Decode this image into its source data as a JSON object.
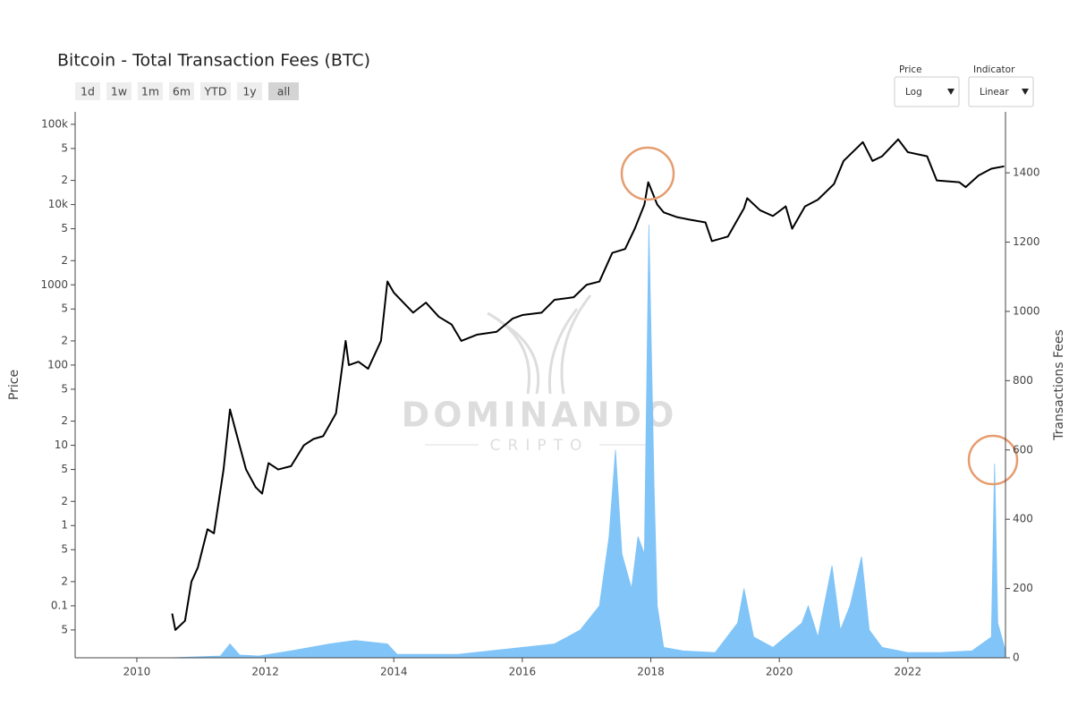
{
  "chart_data": {
    "type": "price-fees",
    "title": "Bitcoin - Total Transaction Fees (BTC)",
    "y_label": "Price",
    "y2_label": "Transactions Fees",
    "xlim": [
      2009.04,
      2023.52
    ],
    "xticks": [
      2010,
      2012,
      2014,
      2016,
      2018,
      2020,
      2022
    ],
    "ylim": [
      0.0225,
      143000
    ],
    "ylog": true,
    "yticks": [
      {
        "value": 100000,
        "label": "100k"
      },
      {
        "value": 50000,
        "label": "5"
      },
      {
        "value": 20000,
        "label": "2"
      },
      {
        "value": 10000,
        "label": "10k"
      },
      {
        "value": 5000,
        "label": "5"
      },
      {
        "value": 2000,
        "label": "2"
      },
      1000,
      {
        "value": 500,
        "label": "5"
      },
      {
        "value": 200,
        "label": "2"
      },
      100,
      {
        "value": 50,
        "label": "5"
      },
      {
        "value": 20,
        "label": "2"
      },
      10,
      {
        "value": 5,
        "label": "5"
      },
      {
        "value": 2,
        "label": "2"
      },
      1,
      {
        "value": 0.5,
        "label": "5"
      },
      {
        "value": 0.2,
        "label": "2"
      },
      0.1,
      {
        "value": 0.05,
        "label": "5"
      }
    ],
    "y2lim": [
      0,
      1576
    ],
    "y2ticks": [
      0,
      200,
      400,
      600,
      800,
      1000,
      1200,
      1400
    ],
    "series": [
      {
        "name": "Transactions Fees",
        "kind": "area",
        "axis": "y2",
        "color": "#80c4f8",
        "x": [
          2009.04,
          2010.5,
          2011.3,
          2011.45,
          2011.6,
          2011.9,
          2012.4,
          2013.0,
          2013.4,
          2013.9,
          2014.05,
          2014.5,
          2015.0,
          2015.5,
          2016.0,
          2016.5,
          2016.9,
          2017.2,
          2017.35,
          2017.45,
          2017.55,
          2017.7,
          2017.8,
          2017.9,
          2017.97,
          2018.05,
          2018.1,
          2018.2,
          2018.5,
          2019.0,
          2019.35,
          2019.45,
          2019.6,
          2019.9,
          2020.35,
          2020.45,
          2020.6,
          2020.82,
          2020.95,
          2021.1,
          2021.28,
          2021.4,
          2021.6,
          2022.0,
          2022.5,
          2023.0,
          2023.3,
          2023.35,
          2023.4,
          2023.52
        ],
        "values": [
          0,
          0,
          5,
          40,
          8,
          5,
          20,
          40,
          50,
          40,
          10,
          10,
          10,
          20,
          30,
          40,
          80,
          150,
          350,
          600,
          300,
          200,
          350,
          300,
          1250,
          500,
          150,
          30,
          20,
          15,
          100,
          200,
          60,
          30,
          100,
          150,
          60,
          266,
          80,
          150,
          292,
          80,
          30,
          15,
          15,
          20,
          60,
          560,
          100,
          20
        ]
      },
      {
        "name": "Price",
        "kind": "line",
        "color": "#000000",
        "x": [
          2010.55,
          2010.6,
          2010.75,
          2010.85,
          2010.95,
          2011.1,
          2011.2,
          2011.35,
          2011.45,
          2011.55,
          2011.7,
          2011.85,
          2011.95,
          2012.05,
          2012.2,
          2012.4,
          2012.6,
          2012.75,
          2012.9,
          2013.1,
          2013.25,
          2013.3,
          2013.45,
          2013.6,
          2013.8,
          2013.9,
          2014.0,
          2014.15,
          2014.3,
          2014.5,
          2014.7,
          2014.9,
          2015.05,
          2015.3,
          2015.6,
          2015.85,
          2016.0,
          2016.3,
          2016.5,
          2016.8,
          2017.0,
          2017.2,
          2017.4,
          2017.6,
          2017.75,
          2017.9,
          2017.96,
          2018.1,
          2018.2,
          2018.4,
          2018.6,
          2018.85,
          2018.95,
          2019.2,
          2019.45,
          2019.5,
          2019.7,
          2019.9,
          2020.1,
          2020.2,
          2020.4,
          2020.6,
          2020.85,
          2021.0,
          2021.3,
          2021.45,
          2021.6,
          2021.85,
          2022.0,
          2022.3,
          2022.45,
          2022.8,
          2022.9,
          2023.1,
          2023.3,
          2023.5
        ],
        "values": [
          0.08,
          0.05,
          0.065,
          0.2,
          0.3,
          0.9,
          0.8,
          5,
          28,
          14,
          5,
          3,
          2.5,
          6,
          5,
          5.5,
          10,
          12,
          13,
          25,
          200,
          100,
          110,
          90,
          200,
          1100,
          800,
          600,
          450,
          600,
          400,
          320,
          200,
          240,
          260,
          380,
          420,
          450,
          650,
          700,
          1000,
          1100,
          2500,
          2800,
          5000,
          10000,
          19000,
          10000,
          8000,
          7000,
          6500,
          6000,
          3500,
          4000,
          9000,
          12000,
          8500,
          7200,
          9500,
          5000,
          9500,
          11500,
          18000,
          35000,
          60000,
          35000,
          40000,
          65000,
          45000,
          40000,
          20000,
          19000,
          16500,
          23000,
          28000,
          30000
        ]
      }
    ]
  },
  "controls": {
    "range_buttons": [
      "1d",
      "1w",
      "1m",
      "6m",
      "YTD",
      "1y",
      "all"
    ],
    "dropdowns": [
      {
        "label": "Price",
        "value": "Log"
      },
      {
        "label": "Indicator",
        "value": "Linear"
      }
    ]
  },
  "watermark": {
    "line1": "DOMINANDO",
    "line2": "CRIPTO"
  }
}
